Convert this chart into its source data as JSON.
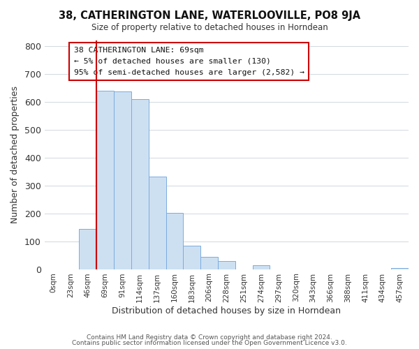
{
  "title": "38, CATHERINGTON LANE, WATERLOOVILLE, PO8 9JA",
  "subtitle": "Size of property relative to detached houses in Horndean",
  "xlabel": "Distribution of detached houses by size in Horndean",
  "ylabel": "Number of detached properties",
  "bar_labels": [
    "0sqm",
    "23sqm",
    "46sqm",
    "69sqm",
    "91sqm",
    "114sqm",
    "137sqm",
    "160sqm",
    "183sqm",
    "206sqm",
    "228sqm",
    "251sqm",
    "274sqm",
    "297sqm",
    "320sqm",
    "343sqm",
    "366sqm",
    "388sqm",
    "411sqm",
    "434sqm",
    "457sqm"
  ],
  "bar_heights": [
    0,
    0,
    143,
    638,
    636,
    609,
    332,
    202,
    84,
    44,
    28,
    0,
    13,
    0,
    0,
    0,
    0,
    0,
    0,
    0,
    5
  ],
  "bar_color": "#cde0f2",
  "bar_edge_color": "#7aabe0",
  "vline_color": "#cc0000",
  "ylim": [
    0,
    820
  ],
  "yticks": [
    0,
    100,
    200,
    300,
    400,
    500,
    600,
    700,
    800
  ],
  "annotation_title": "38 CATHERINGTON LANE: 69sqm",
  "annotation_line1": "← 5% of detached houses are smaller (130)",
  "annotation_line2": "95% of semi-detached houses are larger (2,582) →",
  "footer_line1": "Contains HM Land Registry data © Crown copyright and database right 2024.",
  "footer_line2": "Contains public sector information licensed under the Open Government Licence v3.0.",
  "background_color": "#ffffff",
  "grid_color": "#d0d8e0"
}
